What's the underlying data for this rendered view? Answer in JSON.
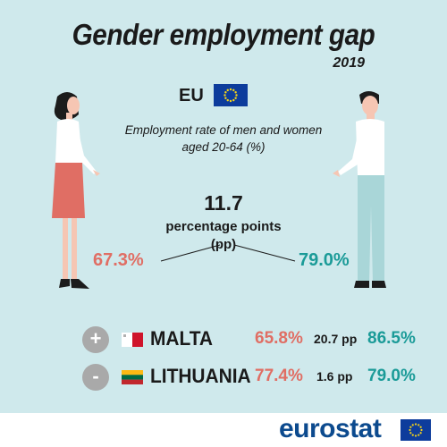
{
  "title": "Gender employment gap",
  "year": "2019",
  "region": "EU",
  "subtitle_line1": "Employment rate of men and women",
  "subtitle_line2": "aged 20-64 (%)",
  "gap": {
    "value": "11.7",
    "unit_line1": "percentage points",
    "unit_line2": "(pp)"
  },
  "rates": {
    "women": "67.3%",
    "men": "79.0%"
  },
  "countries": [
    {
      "sign": "+",
      "name": "MALTA",
      "women": "65.8%",
      "gap": "20.7 pp",
      "men": "86.5%"
    },
    {
      "sign": "-",
      "name": "LITHUANIA",
      "women": "77.4%",
      "gap": "1.6 pp",
      "men": "79.0%"
    }
  ],
  "footer": {
    "logo": "eurostat"
  },
  "colors": {
    "background": "#cfe9ec",
    "women": "#e06e64",
    "men": "#1b9b98",
    "eu_blue": "#0d3c9c",
    "eu_gold": "#f7d417",
    "logo_blue": "#0c4a8e"
  },
  "icons": {
    "eu_flag": "eu-flag-icon",
    "woman": "woman-figure-icon",
    "man": "man-figure-icon",
    "malta_flag": "malta-flag-icon",
    "lithuania_flag": "lithuania-flag-icon"
  }
}
